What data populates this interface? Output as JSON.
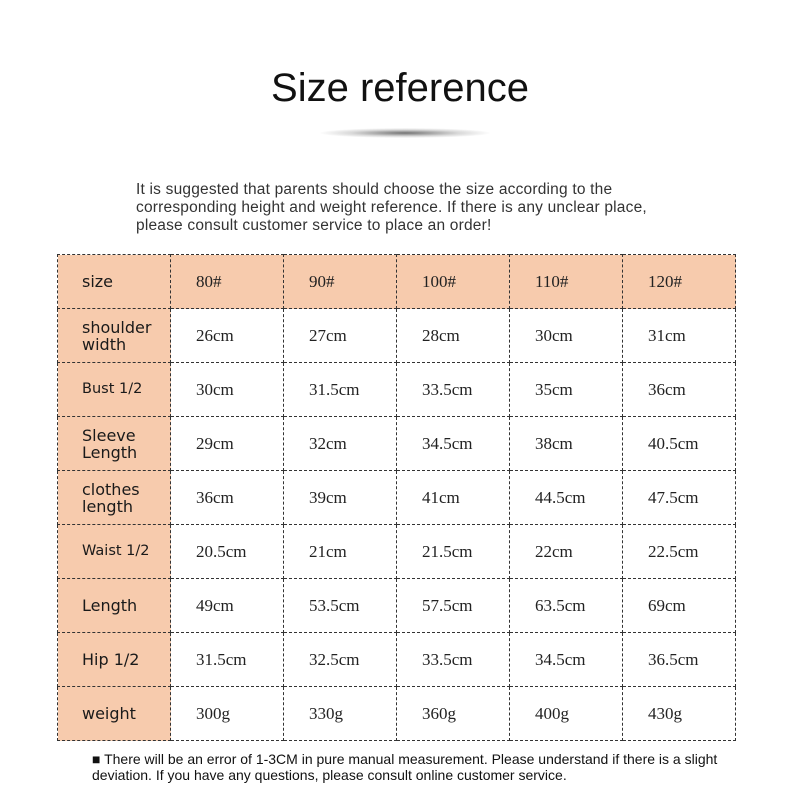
{
  "title": "Size reference",
  "intro": "It is suggested that parents should choose the size according to the corresponding height and weight reference. If there is any unclear place, please consult customer service to place an order!",
  "table": {
    "header_label": "size",
    "sizes": [
      "80#",
      "90#",
      "100#",
      "110#",
      "120#"
    ],
    "rows": [
      {
        "label": "shoulder width",
        "values": [
          "26cm",
          "27cm",
          "28cm",
          "30cm",
          "31cm"
        ]
      },
      {
        "label": "Bust 1/2",
        "values": [
          "30cm",
          "31.5cm",
          "33.5cm",
          "35cm",
          "36cm"
        ]
      },
      {
        "label": "Sleeve Length",
        "values": [
          "29cm",
          "32cm",
          "34.5cm",
          "38cm",
          "40.5cm"
        ]
      },
      {
        "label": "clothes length",
        "values": [
          "36cm",
          "39cm",
          "41cm",
          "44.5cm",
          "47.5cm"
        ]
      },
      {
        "label": "Waist 1/2",
        "values": [
          "20.5cm",
          "21cm",
          "21.5cm",
          "22cm",
          "22.5cm"
        ]
      },
      {
        "label": "Length",
        "values": [
          "49cm",
          "53.5cm",
          "57.5cm",
          "63.5cm",
          "69cm"
        ]
      },
      {
        "label": "Hip 1/2",
        "values": [
          "31.5cm",
          "32.5cm",
          "33.5cm",
          "34.5cm",
          "36.5cm"
        ]
      },
      {
        "label": "weight",
        "values": [
          "300g",
          "330g",
          "360g",
          "400g",
          "430g"
        ]
      }
    ]
  },
  "note": "■ There will be an error of 1-3CM in pure manual measurement. Please understand if there is a slight deviation. If you have any questions, please consult online customer service.",
  "colors": {
    "header_bg": "#f7cbad"
  }
}
